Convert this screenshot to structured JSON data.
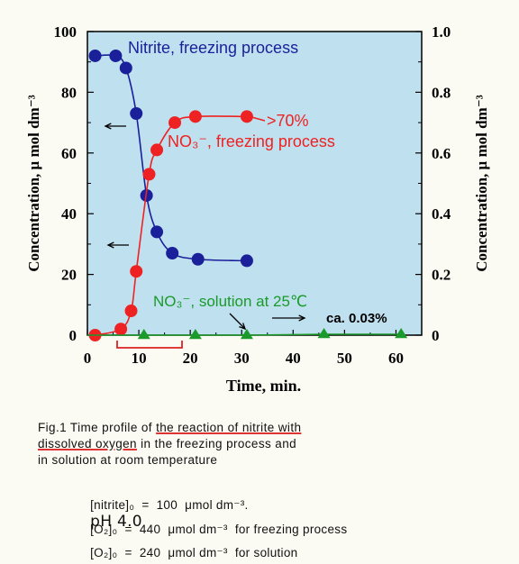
{
  "chart_data": {
    "type": "line",
    "xlabel": "Time, min.",
    "ylabel_left": "Concentration, μ mol dm⁻³",
    "ylabel_right": "Concentration, μ mol dm⁻³",
    "xlim": [
      0,
      65
    ],
    "ylim_left": [
      0,
      100
    ],
    "ylim_right": [
      0,
      1.0
    ],
    "x_ticks": [
      "0",
      "10",
      "20",
      "30",
      "40",
      "50",
      "60"
    ],
    "y_ticks_left": [
      "0",
      "20",
      "40",
      "60",
      "80",
      "100"
    ],
    "y_ticks_right": [
      "0",
      "0.2",
      "0.4",
      "0.6",
      "0.8",
      "1.0"
    ],
    "grid": false,
    "plot_background": "#bfe0ee",
    "series": [
      {
        "name": "Nitrite, freezing process",
        "axis": "left",
        "color": "#1a1f9a",
        "marker": "circle",
        "x": [
          1.5,
          5.5,
          7.5,
          9.5,
          11.5,
          13.5,
          16.5,
          21.5,
          31
        ],
        "y": [
          92,
          92,
          88,
          73,
          46,
          34,
          27,
          25,
          24.5
        ]
      },
      {
        "name": "NO3⁻, freezing process",
        "axis": "right",
        "color": "#ee2222",
        "marker": "circle",
        "x": [
          1.5,
          6.5,
          8.5,
          9.5,
          12,
          13.5,
          17,
          21,
          31
        ],
        "y": [
          0,
          0.02,
          0.08,
          0.21,
          0.53,
          0.61,
          0.7,
          0.72,
          0.72
        ]
      },
      {
        "name": "NO3⁻, solution at 25℃",
        "axis": "right",
        "color": "#1a9a2a",
        "marker": "triangle",
        "x": [
          11,
          21,
          31,
          46,
          61
        ],
        "y": [
          0.0,
          0.0,
          0.0,
          0.003,
          0.003
        ]
      }
    ],
    "annotations": {
      "nitrite_label": "Nitrite,  freezing process",
      "pct": ">70%",
      "no3_freeze_label": "NO₃⁻,  freezing process",
      "no3_solution_label": "NO₃⁻,  solution at 25℃",
      "ca": "ca.  0.03%"
    }
  },
  "caption": {
    "prefix": "Fig.1  Time profile of ",
    "underlined_1": "the reaction of nitrite with",
    "underlined_2": "dissolved oxygen",
    "rest_1": " in the freezing process and",
    "line_3": "in solution at room temperature"
  },
  "conditions": [
    {
      "text": "[nitrite]₀  =  100  μmol dm⁻³.",
      "handwritten": "pH 4.0"
    },
    {
      "text": "[O₂]₀  =  440  μmol dm⁻³  for freezing process",
      "handwritten": ""
    },
    {
      "text": "[O₂]₀  =  240  μmol dm⁻³  for solution",
      "handwritten": ""
    }
  ]
}
